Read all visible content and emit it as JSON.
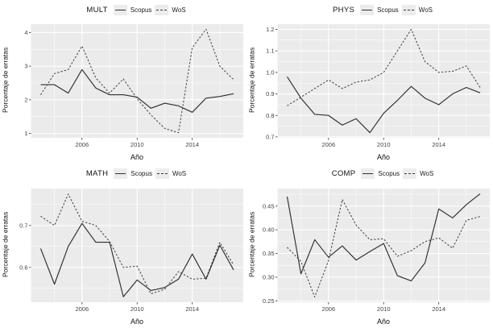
{
  "figure": {
    "background": "#ffffff",
    "panel_bg": "#ebebeb",
    "grid_color": "#ffffff",
    "solid_line_color": "#2e2e2e",
    "dashed_line_color": "#3a3a3a",
    "tick_text_color": "#444444",
    "axis_title_color": "#0d0d0d",
    "legend_key_bg": "#ececec",
    "legend_series": [
      "Scopus",
      "WoS"
    ]
  },
  "chart_data": [
    {
      "type": "line",
      "title": "MULT",
      "xlabel": "Año",
      "ylabel": "Porcentaje de erratas",
      "grid": true,
      "legend_position": "top",
      "x": [
        2003,
        2004,
        2005,
        2006,
        2007,
        2008,
        2009,
        2010,
        2011,
        2012,
        2013,
        2014,
        2015,
        2016,
        2017
      ],
      "series": [
        {
          "name": "Scopus",
          "linetype": "solid",
          "values": [
            2.45,
            2.45,
            2.2,
            2.9,
            2.35,
            2.15,
            2.15,
            2.08,
            1.75,
            1.9,
            1.82,
            1.63,
            2.05,
            2.1,
            2.18
          ]
        },
        {
          "name": "WoS",
          "linetype": "dashed",
          "values": [
            2.15,
            2.78,
            2.9,
            3.6,
            2.65,
            2.2,
            2.62,
            2.03,
            1.55,
            1.15,
            1.02,
            3.55,
            4.1,
            3.0,
            2.6
          ]
        }
      ],
      "xlim": [
        2002.3,
        2017.7
      ],
      "ylim": [
        0.87,
        4.25
      ],
      "xticks": {
        "values": [
          2006,
          2010,
          2014
        ],
        "labels": [
          "2006",
          "2010",
          "2014"
        ]
      },
      "yticks": {
        "values": [
          1,
          2,
          3,
          4
        ],
        "labels": [
          "1",
          "2",
          "3",
          "4"
        ]
      },
      "xminor": [
        2004,
        2008,
        2012,
        2016
      ],
      "yminor": [
        1.5,
        2.5,
        3.5
      ]
    },
    {
      "type": "line",
      "title": "PHYS",
      "xlabel": "Año",
      "ylabel": "Porcentaje de erratas",
      "grid": true,
      "legend_position": "top",
      "x": [
        2003,
        2004,
        2005,
        2006,
        2007,
        2008,
        2009,
        2010,
        2011,
        2012,
        2013,
        2014,
        2015,
        2016,
        2017
      ],
      "series": [
        {
          "name": "Scopus",
          "linetype": "solid",
          "values": [
            0.98,
            0.88,
            0.805,
            0.8,
            0.755,
            0.785,
            0.72,
            0.81,
            0.87,
            0.935,
            0.88,
            0.85,
            0.9,
            0.93,
            0.905
          ]
        },
        {
          "name": "WoS",
          "linetype": "dashed",
          "values": [
            0.845,
            0.885,
            0.925,
            0.965,
            0.925,
            0.955,
            0.965,
            1.0,
            1.1,
            1.2,
            1.05,
            1.0,
            1.005,
            1.03,
            0.93
          ]
        }
      ],
      "xlim": [
        2002.3,
        2017.7
      ],
      "ylim": [
        0.696,
        1.224
      ],
      "xticks": {
        "values": [
          2006,
          2010,
          2014
        ],
        "labels": [
          "2006",
          "2010",
          "2014"
        ]
      },
      "yticks": {
        "values": [
          0.7,
          0.8,
          0.9,
          1.0,
          1.1,
          1.2
        ],
        "labels": [
          "0.7",
          "0.8",
          "0.9",
          "1.0",
          "1.1",
          "1.2"
        ]
      },
      "xminor": [
        2004,
        2008,
        2012,
        2016
      ],
      "yminor": [
        0.75,
        0.85,
        0.95,
        1.05,
        1.15
      ]
    },
    {
      "type": "line",
      "title": "MATH",
      "xlabel": "Año",
      "ylabel": "Porcentaje de erratas",
      "grid": true,
      "legend_position": "top",
      "x": [
        2003,
        2004,
        2005,
        2006,
        2007,
        2008,
        2009,
        2010,
        2011,
        2012,
        2013,
        2014,
        2015,
        2016,
        2017
      ],
      "series": [
        {
          "name": "Scopus",
          "linetype": "solid",
          "values": [
            0.645,
            0.56,
            0.65,
            0.705,
            0.66,
            0.66,
            0.53,
            0.57,
            0.545,
            0.552,
            0.572,
            0.632,
            0.572,
            0.653,
            0.594
          ]
        },
        {
          "name": "WoS",
          "linetype": "dashed",
          "values": [
            0.722,
            0.7,
            0.775,
            0.71,
            0.7,
            0.662,
            0.6,
            0.603,
            0.537,
            0.548,
            0.59,
            0.572,
            0.574,
            0.66,
            0.606
          ]
        }
      ],
      "xlim": [
        2002.3,
        2017.7
      ],
      "ylim": [
        0.517,
        0.788
      ],
      "xticks": {
        "values": [
          2006,
          2010,
          2014
        ],
        "labels": [
          "2006",
          "2010",
          "2014"
        ]
      },
      "yticks": {
        "values": [
          0.6,
          0.7
        ],
        "labels": [
          "0.6",
          "0.7"
        ]
      },
      "xminor": [
        2004,
        2008,
        2012,
        2016
      ],
      "yminor": [
        0.55,
        0.65,
        0.75
      ]
    },
    {
      "type": "line",
      "title": "COMP",
      "xlabel": "Año",
      "ylabel": "Porcentaje de erratas",
      "grid": true,
      "legend_position": "top",
      "x": [
        2003,
        2004,
        2005,
        2006,
        2007,
        2008,
        2009,
        2010,
        2011,
        2012,
        2013,
        2014,
        2015,
        2016,
        2017
      ],
      "series": [
        {
          "name": "Scopus",
          "linetype": "solid",
          "values": [
            0.47,
            0.307,
            0.379,
            0.342,
            0.366,
            0.336,
            0.354,
            0.371,
            0.303,
            0.292,
            0.33,
            0.444,
            0.425,
            0.453,
            0.476
          ]
        },
        {
          "name": "WoS",
          "linetype": "dashed",
          "values": [
            0.363,
            0.333,
            0.258,
            0.335,
            0.464,
            0.41,
            0.379,
            0.381,
            0.344,
            0.356,
            0.375,
            0.383,
            0.361,
            0.42,
            0.428
          ]
        }
      ],
      "xlim": [
        2002.3,
        2017.7
      ],
      "ylim": [
        0.247,
        0.487
      ],
      "xticks": {
        "values": [
          2006,
          2010,
          2014
        ],
        "labels": [
          "2006",
          "2010",
          "2014"
        ]
      },
      "yticks": {
        "values": [
          0.25,
          0.3,
          0.35,
          0.4,
          0.45
        ],
        "labels": [
          "0.25",
          "0.30",
          "0.35",
          "0.40",
          "0.45"
        ]
      },
      "xminor": [
        2004,
        2008,
        2012,
        2016
      ],
      "yminor": [
        0.275,
        0.325,
        0.375,
        0.425,
        0.475
      ]
    }
  ]
}
